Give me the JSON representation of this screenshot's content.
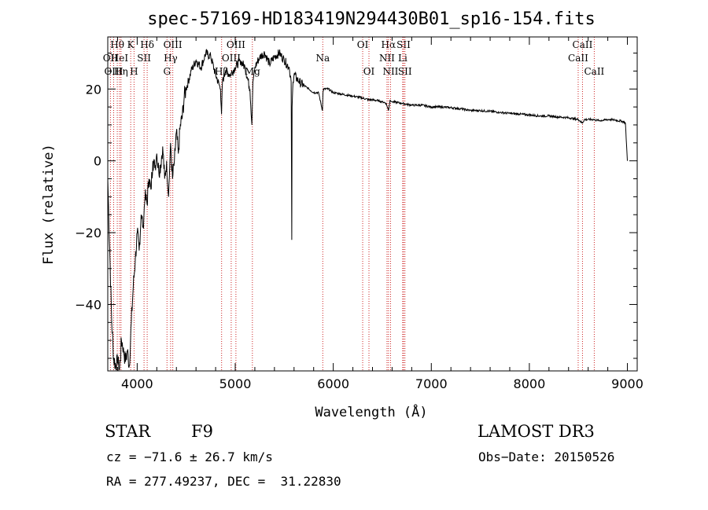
{
  "chart_data": {
    "type": "line",
    "title": "spec-57169-HD183419N294430B01_sp16-154.fits",
    "xlabel": "Wavelength (Å)",
    "ylabel": "Flux (relative)",
    "xlim": [
      3700,
      9100
    ],
    "ylim": [
      -58.5,
      34.5
    ],
    "xticks": [
      4000,
      5000,
      6000,
      7000,
      8000,
      9000
    ],
    "yticks": [
      -40,
      -20,
      0,
      20
    ],
    "series": [
      {
        "name": "spectrum",
        "x": [
          3700,
          3720,
          3740,
          3760,
          3780,
          3800,
          3820,
          3840,
          3860,
          3880,
          3900,
          3920,
          3940,
          3960,
          3980,
          4000,
          4020,
          4040,
          4060,
          4080,
          4100,
          4120,
          4140,
          4160,
          4180,
          4200,
          4220,
          4240,
          4260,
          4280,
          4300,
          4320,
          4340,
          4360,
          4380,
          4400,
          4420,
          4440,
          4460,
          4480,
          4500,
          4550,
          4600,
          4650,
          4700,
          4750,
          4800,
          4850,
          4860,
          4870,
          4900,
          4950,
          5000,
          5050,
          5100,
          5150,
          5170,
          5180,
          5190,
          5200,
          5250,
          5300,
          5350,
          5400,
          5450,
          5500,
          5550,
          5570,
          5577,
          5580,
          5590,
          5600,
          5650,
          5700,
          5750,
          5800,
          5850,
          5890,
          5895,
          5900,
          5950,
          6000,
          6100,
          6200,
          6300,
          6360,
          6400,
          6500,
          6540,
          6563,
          6580,
          6600,
          6700,
          6800,
          6900,
          7000,
          7100,
          7200,
          7300,
          7400,
          7500,
          7600,
          7700,
          7800,
          7900,
          8000,
          8100,
          8200,
          8300,
          8400,
          8500,
          8540,
          8560,
          8600,
          8650,
          8700,
          8750,
          8800,
          8850,
          8900,
          8950,
          8980,
          9000
        ],
        "y": [
          -5,
          -25,
          -45,
          -55,
          -57,
          -56,
          -58,
          -50,
          -52,
          -56,
          -53,
          -57,
          -45,
          -35,
          -28,
          -20,
          -25,
          -15,
          -18,
          -10,
          -12,
          -5,
          -8,
          0,
          -2,
          2,
          -3,
          -1,
          4,
          -5,
          0,
          -10,
          5,
          -5,
          0,
          8,
          2,
          10,
          12,
          18,
          20,
          25,
          28,
          26,
          30,
          29,
          24,
          20,
          13,
          22,
          25,
          24,
          26,
          28,
          26,
          20,
          10,
          22,
          24,
          26,
          29,
          30,
          27,
          29,
          30,
          28,
          26,
          22,
          -22,
          15,
          22,
          24,
          22,
          21,
          20,
          19,
          19,
          14,
          19,
          20,
          20,
          19,
          18.5,
          18,
          17.5,
          17,
          17,
          16.5,
          16,
          14,
          17,
          16.5,
          16,
          15.5,
          15.5,
          15,
          15,
          14.8,
          14.5,
          14,
          14,
          13.8,
          13.5,
          13.2,
          13,
          12.8,
          12.5,
          12.5,
          12.2,
          12,
          11.5,
          10.5,
          11.5,
          11.5,
          11.5,
          11.2,
          11.3,
          11.5,
          11.5,
          11.2,
          11,
          10.5,
          0
        ]
      }
    ],
    "lines": [
      {
        "label": "Hθ",
        "x": 3797,
        "row": 0
      },
      {
        "label": "K",
        "x": 3934,
        "row": 0
      },
      {
        "label": "Hδ",
        "x": 4102,
        "row": 0
      },
      {
        "label": "OII",
        "x": 3727,
        "row": 1
      },
      {
        "label": "HeI",
        "x": 3820,
        "row": 1
      },
      {
        "label": "SII",
        "x": 4070,
        "row": 1
      },
      {
        "label": "OIII",
        "x": 3760,
        "row": 2
      },
      {
        "label": "Hη",
        "x": 3835,
        "row": 2
      },
      {
        "label": "H",
        "x": 3968,
        "row": 2
      },
      {
        "label": "OIII",
        "x": 4363,
        "row": 0
      },
      {
        "label": "Hγ",
        "x": 4341,
        "row": 1
      },
      {
        "label": "G",
        "x": 4304,
        "row": 2
      },
      {
        "label": "OIII",
        "x": 5007,
        "row": 0
      },
      {
        "label": "OIII",
        "x": 4959,
        "row": 1
      },
      {
        "label": "Hβ",
        "x": 4861,
        "row": 2
      },
      {
        "label": "Mg",
        "x": 5175,
        "row": 2
      },
      {
        "label": "Na",
        "x": 5893,
        "row": 1
      },
      {
        "label": "OI",
        "x": 6300,
        "row": 0
      },
      {
        "label": "OI",
        "x": 6364,
        "row": 2
      },
      {
        "label": "Hα",
        "x": 6563,
        "row": 0
      },
      {
        "label": "SII",
        "x": 6717,
        "row": 0
      },
      {
        "label": "NII",
        "x": 6548,
        "row": 1
      },
      {
        "label": "Li",
        "x": 6708,
        "row": 1
      },
      {
        "label": "NII",
        "x": 6584,
        "row": 2
      },
      {
        "label": "SII",
        "x": 6731,
        "row": 2
      },
      {
        "label": "CaII",
        "x": 8542,
        "row": 0
      },
      {
        "label": "CaII",
        "x": 8498,
        "row": 1
      },
      {
        "label": "CaII",
        "x": 8662,
        "row": 2
      }
    ]
  },
  "info": {
    "class_label": "STAR",
    "subclass": "F9",
    "survey": "LAMOST DR3",
    "cz": "cz = −71.6 ± 26.7 km/s",
    "obs_date": "Obs−Date: 20150526",
    "coords": "RA = 277.49237, DEC =  31.22830"
  },
  "colors": {
    "line_marker": "#cc2222",
    "spectrum": "#000000"
  }
}
